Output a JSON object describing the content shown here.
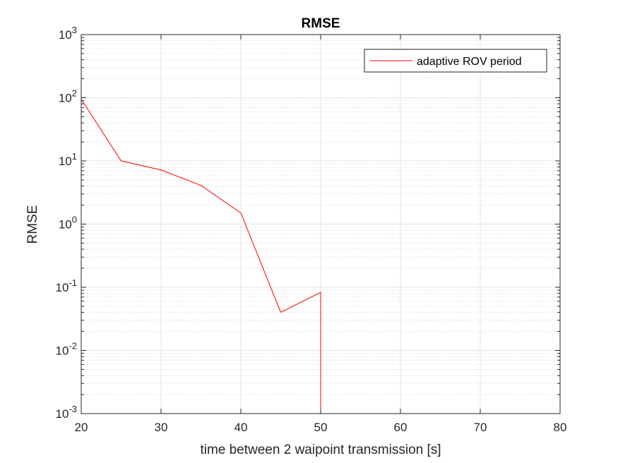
{
  "chart_data": {
    "type": "line",
    "title": "RMSE",
    "xlabel": "time between 2 waipoint transmission [s]",
    "ylabel": "RMSE",
    "xlim": [
      20,
      80
    ],
    "ylim": [
      0.001,
      1000
    ],
    "yscale": "log",
    "grid": true,
    "minor_grid": true,
    "legend_position": "top-right",
    "x_ticks": [
      "20",
      "30",
      "40",
      "50",
      "60",
      "70",
      "80"
    ],
    "y_ticks": [
      {
        "base": "10",
        "exp": "-3"
      },
      {
        "base": "10",
        "exp": "-2"
      },
      {
        "base": "10",
        "exp": "-1"
      },
      {
        "base": "10",
        "exp": "0"
      },
      {
        "base": "10",
        "exp": "1"
      },
      {
        "base": "10",
        "exp": "2"
      },
      {
        "base": "10",
        "exp": "3"
      }
    ],
    "series": [
      {
        "name": "adaptive ROV period",
        "color": "#ff0000",
        "x": [
          20,
          25,
          30,
          35,
          40,
          45,
          50,
          50
        ],
        "y": [
          95,
          10,
          7.2,
          4.1,
          1.5,
          0.04,
          0.083,
          0.001
        ]
      }
    ]
  }
}
